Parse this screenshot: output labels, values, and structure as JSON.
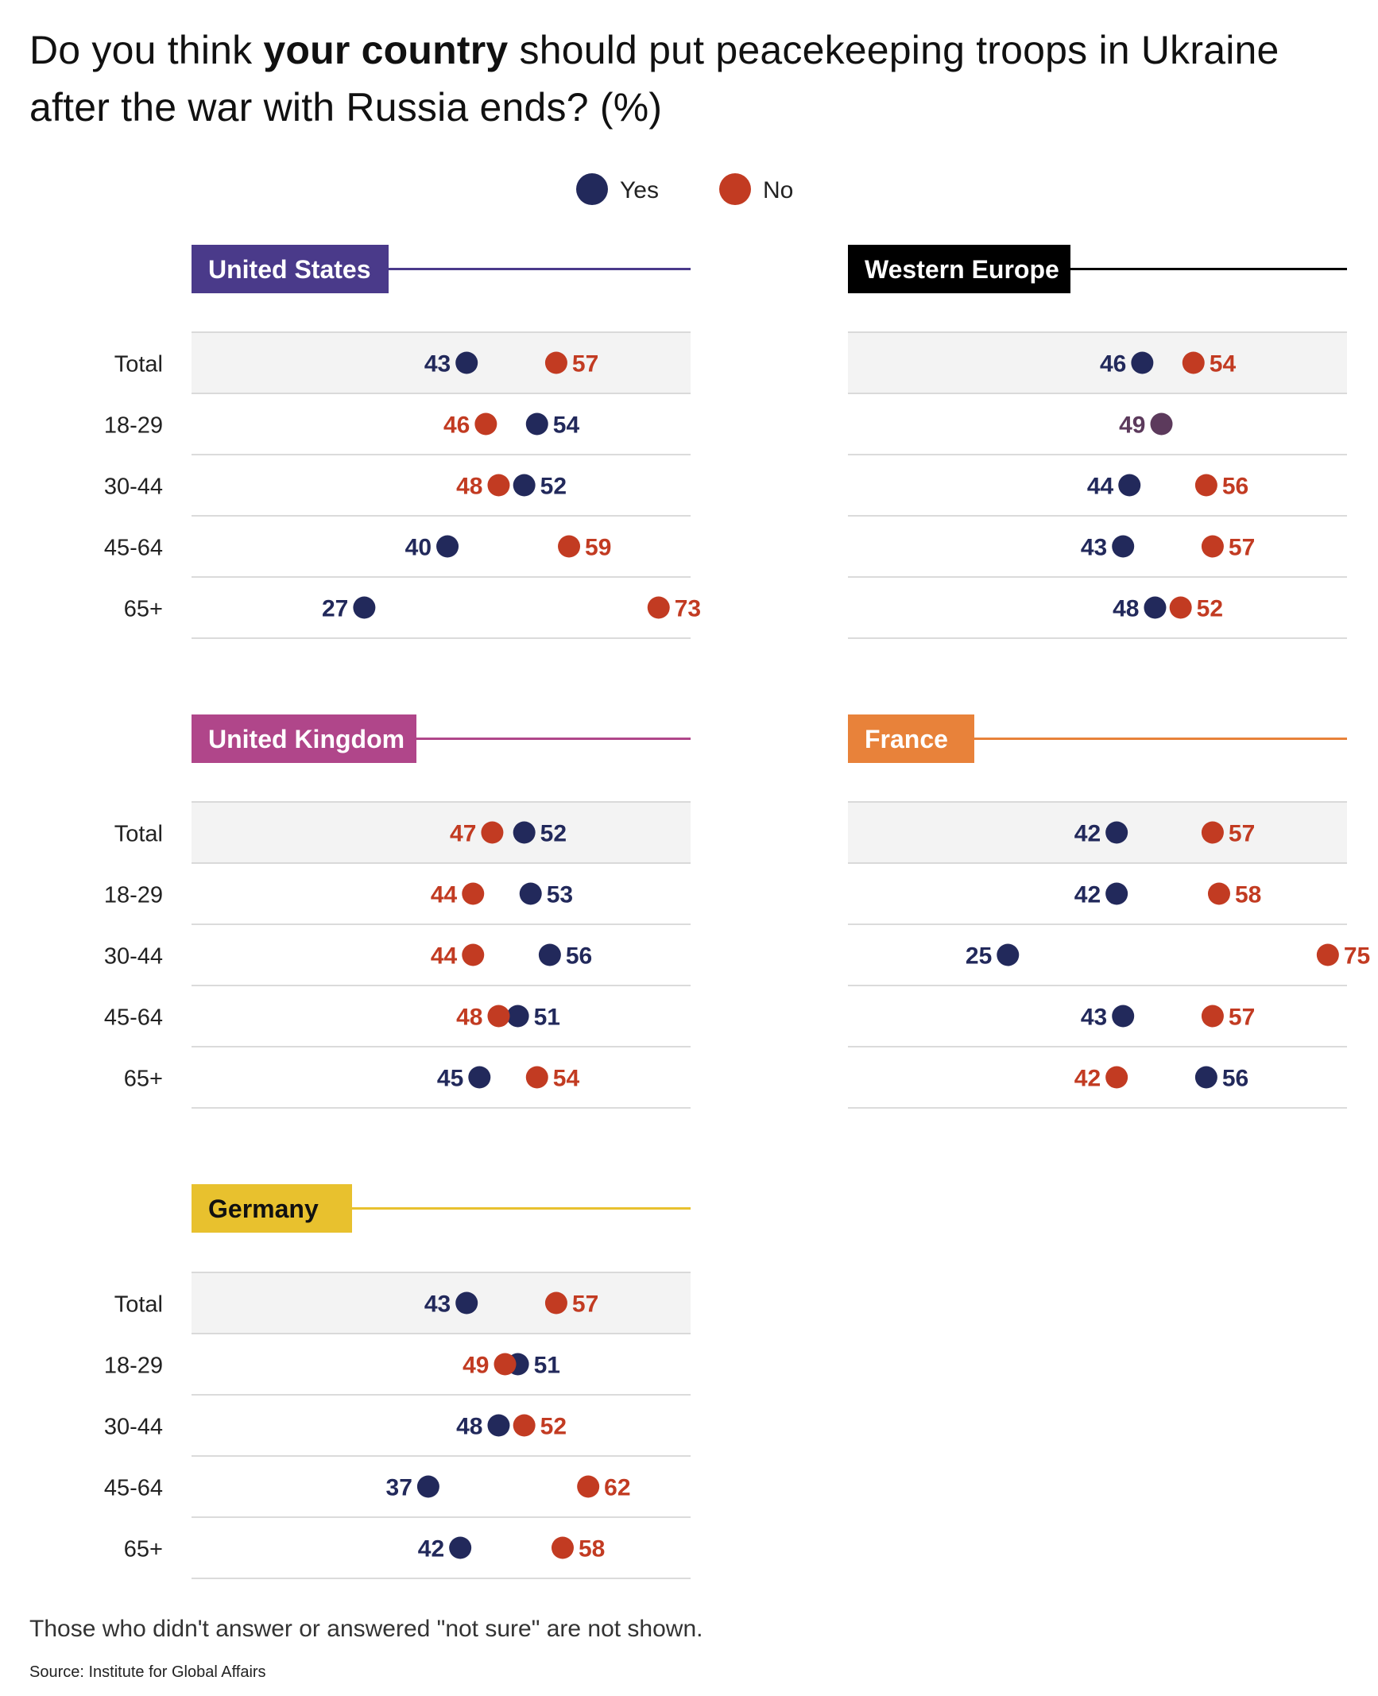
{
  "title": {
    "prefix": "Do you think ",
    "emphasis": "your country",
    "suffix": " should put peacekeeping troops in Ukraine",
    "line2": "after the war with Russia ends? (%)"
  },
  "legend": [
    {
      "label": "Yes",
      "color": "#22295b"
    },
    {
      "label": "No",
      "color": "#c23b22"
    }
  ],
  "overlap_color": "#5c3a5c",
  "footnote": "Those who didn't answer or answered \"not sure\" are not shown.",
  "source": "Source: Institute for Global Affairs",
  "chart_data": [
    {
      "type": "dot",
      "title": "United States",
      "accent": "#4a3a8a",
      "categories": [
        "Total",
        "18-29",
        "30-44",
        "45-64",
        "65+"
      ],
      "series": [
        {
          "name": "Yes",
          "values": [
            43,
            54,
            52,
            40,
            27
          ]
        },
        {
          "name": "No",
          "values": [
            57,
            46,
            48,
            59,
            73
          ]
        }
      ]
    },
    {
      "type": "dot",
      "title": "Western Europe",
      "accent": "#000000",
      "categories": [
        "",
        "",
        "",
        "",
        ""
      ],
      "series": [
        {
          "name": "Yes",
          "values": [
            46,
            49,
            44,
            43,
            48
          ]
        },
        {
          "name": "No",
          "values": [
            54,
            49,
            56,
            57,
            52
          ]
        }
      ]
    },
    {
      "type": "dot",
      "title": "United Kingdom",
      "accent": "#b0468a",
      "categories": [
        "Total",
        "18-29",
        "30-44",
        "45-64",
        "65+"
      ],
      "series": [
        {
          "name": "Yes",
          "values": [
            52,
            53,
            56,
            51,
            45
          ]
        },
        {
          "name": "No",
          "values": [
            47,
            44,
            44,
            48,
            54
          ]
        }
      ]
    },
    {
      "type": "dot",
      "title": "France",
      "accent": "#e8823a",
      "categories": [
        "",
        "",
        "",
        "",
        ""
      ],
      "series": [
        {
          "name": "Yes",
          "values": [
            42,
            42,
            25,
            43,
            56
          ]
        },
        {
          "name": "No",
          "values": [
            57,
            58,
            75,
            57,
            42
          ]
        }
      ]
    },
    {
      "type": "dot",
      "title": "Germany",
      "accent": "#e8c12e",
      "categories": [
        "Total",
        "18-29",
        "30-44",
        "45-64",
        "65+"
      ],
      "series": [
        {
          "name": "Yes",
          "values": [
            43,
            51,
            48,
            37,
            42
          ]
        },
        {
          "name": "No",
          "values": [
            57,
            49,
            52,
            62,
            58
          ]
        }
      ]
    }
  ]
}
